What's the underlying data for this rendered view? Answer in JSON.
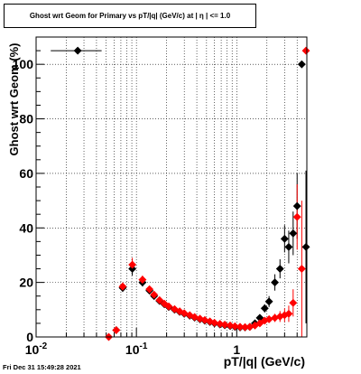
{
  "chart_data": {
    "type": "scatter",
    "title": "Ghost wrt Geom for Primary vs pT/|q| (GeV/c) at |  η  | <= 1.0",
    "xlabel": "pT/|q| (GeV/c)",
    "ylabel": "Ghost wrt Geom (%)",
    "xscale": "log",
    "xlim": [
      0.01,
      5.0
    ],
    "ylim": [
      0,
      110
    ],
    "grid": true,
    "legend": "none",
    "x_tick_labels": [
      {
        "x": 0.01,
        "label": "10",
        "exp": "-2"
      },
      {
        "x": 0.1,
        "label": "10",
        "exp": "-1"
      },
      {
        "x": 1,
        "label": "1",
        "exp": ""
      }
    ],
    "y_ticks": [
      0,
      20,
      40,
      60,
      80,
      100
    ],
    "series": [
      {
        "color": "#000000",
        "marker": "diamond",
        "points": [
          {
            "x": 0.026,
            "y": 105.0,
            "xlo": 0.014,
            "xhi": 0.045,
            "err": 0
          },
          {
            "x": 0.063,
            "y": 2.5,
            "err": 0
          },
          {
            "x": 0.073,
            "y": 18.0,
            "err": 1.5
          },
          {
            "x": 0.091,
            "y": 25.0,
            "err": 2.5
          },
          {
            "x": 0.115,
            "y": 20.0,
            "err": 1.5
          },
          {
            "x": 0.135,
            "y": 17.0,
            "err": 1.0
          },
          {
            "x": 0.15,
            "y": 15.0,
            "err": 0.8
          },
          {
            "x": 0.17,
            "y": 13.2,
            "err": 0.6
          },
          {
            "x": 0.19,
            "y": 12.0,
            "err": 0.5
          },
          {
            "x": 0.21,
            "y": 11.0,
            "err": 0.5
          },
          {
            "x": 0.24,
            "y": 10.0,
            "err": 0.4
          },
          {
            "x": 0.27,
            "y": 9.2,
            "err": 0.4
          },
          {
            "x": 0.3,
            "y": 8.5,
            "err": 0.4
          },
          {
            "x": 0.34,
            "y": 7.8,
            "err": 0.4
          },
          {
            "x": 0.38,
            "y": 7.1,
            "err": 0.4
          },
          {
            "x": 0.43,
            "y": 6.5,
            "err": 0.4
          },
          {
            "x": 0.48,
            "y": 6.0,
            "err": 0.4
          },
          {
            "x": 0.54,
            "y": 5.5,
            "err": 0.4
          },
          {
            "x": 0.6,
            "y": 5.0,
            "err": 0.4
          },
          {
            "x": 0.68,
            "y": 4.6,
            "err": 0.4
          },
          {
            "x": 0.76,
            "y": 4.3,
            "err": 0.4
          },
          {
            "x": 0.86,
            "y": 4.0,
            "err": 0.4
          },
          {
            "x": 0.96,
            "y": 3.7,
            "err": 0.4
          },
          {
            "x": 1.08,
            "y": 3.5,
            "err": 0.5
          },
          {
            "x": 1.21,
            "y": 3.5,
            "err": 0.5
          },
          {
            "x": 1.35,
            "y": 3.7,
            "err": 0.6
          },
          {
            "x": 1.52,
            "y": 5.0,
            "err": 0.8
          },
          {
            "x": 1.7,
            "y": 7.0,
            "err": 1.0
          },
          {
            "x": 1.9,
            "y": 10.5,
            "err": 1.5
          },
          {
            "x": 2.1,
            "y": 13.0,
            "err": 2.0
          },
          {
            "x": 2.4,
            "y": 20.0,
            "err": 3.0
          },
          {
            "x": 2.7,
            "y": 25.0,
            "err": 3.5
          },
          {
            "x": 3.0,
            "y": 36.0,
            "err": 5.0
          },
          {
            "x": 3.3,
            "y": 33.0,
            "err": 6.0
          },
          {
            "x": 3.65,
            "y": 38.0,
            "err": 8.0
          },
          {
            "x": 4.0,
            "y": 48.0,
            "err": 12.0
          },
          {
            "x": 4.45,
            "y": 100.0,
            "err": 0
          },
          {
            "x": 4.9,
            "y": 33.0,
            "err": 28.0
          }
        ]
      },
      {
        "color": "#ff0000",
        "marker": "diamond",
        "points": [
          {
            "x": 0.053,
            "y": 0.0,
            "err": 0
          },
          {
            "x": 0.063,
            "y": 2.5,
            "err": 0
          },
          {
            "x": 0.073,
            "y": 18.5,
            "err": 1.5
          },
          {
            "x": 0.091,
            "y": 26.5,
            "err": 2.5
          },
          {
            "x": 0.115,
            "y": 21.0,
            "err": 1.5
          },
          {
            "x": 0.135,
            "y": 17.5,
            "err": 1.0
          },
          {
            "x": 0.15,
            "y": 15.5,
            "err": 0.8
          },
          {
            "x": 0.17,
            "y": 13.5,
            "err": 0.6
          },
          {
            "x": 0.19,
            "y": 12.2,
            "err": 0.5
          },
          {
            "x": 0.21,
            "y": 11.2,
            "err": 0.5
          },
          {
            "x": 0.24,
            "y": 10.2,
            "err": 0.4
          },
          {
            "x": 0.27,
            "y": 9.4,
            "err": 0.4
          },
          {
            "x": 0.3,
            "y": 8.7,
            "err": 0.4
          },
          {
            "x": 0.34,
            "y": 8.0,
            "err": 0.4
          },
          {
            "x": 0.38,
            "y": 7.3,
            "err": 0.4
          },
          {
            "x": 0.43,
            "y": 6.7,
            "err": 0.4
          },
          {
            "x": 0.48,
            "y": 6.2,
            "err": 0.4
          },
          {
            "x": 0.54,
            "y": 5.7,
            "err": 0.4
          },
          {
            "x": 0.6,
            "y": 5.2,
            "err": 0.4
          },
          {
            "x": 0.68,
            "y": 4.8,
            "err": 0.4
          },
          {
            "x": 0.76,
            "y": 4.5,
            "err": 0.4
          },
          {
            "x": 0.86,
            "y": 4.2,
            "err": 0.4
          },
          {
            "x": 0.96,
            "y": 3.9,
            "err": 0.4
          },
          {
            "x": 1.08,
            "y": 3.7,
            "err": 0.5
          },
          {
            "x": 1.21,
            "y": 3.6,
            "err": 0.5
          },
          {
            "x": 1.35,
            "y": 3.7,
            "err": 0.6
          },
          {
            "x": 1.52,
            "y": 4.2,
            "err": 0.7
          },
          {
            "x": 1.7,
            "y": 5.0,
            "err": 0.8
          },
          {
            "x": 1.9,
            "y": 6.0,
            "err": 1.0
          },
          {
            "x": 2.1,
            "y": 6.5,
            "err": 1.2
          },
          {
            "x": 2.4,
            "y": 7.0,
            "err": 1.5
          },
          {
            "x": 2.7,
            "y": 7.5,
            "err": 2.0
          },
          {
            "x": 3.0,
            "y": 8.0,
            "err": 2.5
          },
          {
            "x": 3.3,
            "y": 8.5,
            "err": 3.0
          },
          {
            "x": 3.65,
            "y": 12.5,
            "err": 5.0
          },
          {
            "x": 4.0,
            "y": 44.0,
            "err": 12.0
          },
          {
            "x": 4.45,
            "y": 25.0,
            "err": 25.0
          },
          {
            "x": 4.9,
            "y": 105.0,
            "err": 0
          }
        ]
      }
    ]
  },
  "footer": {
    "timestamp": "Fri Dec 31 15:49:28 2021"
  }
}
